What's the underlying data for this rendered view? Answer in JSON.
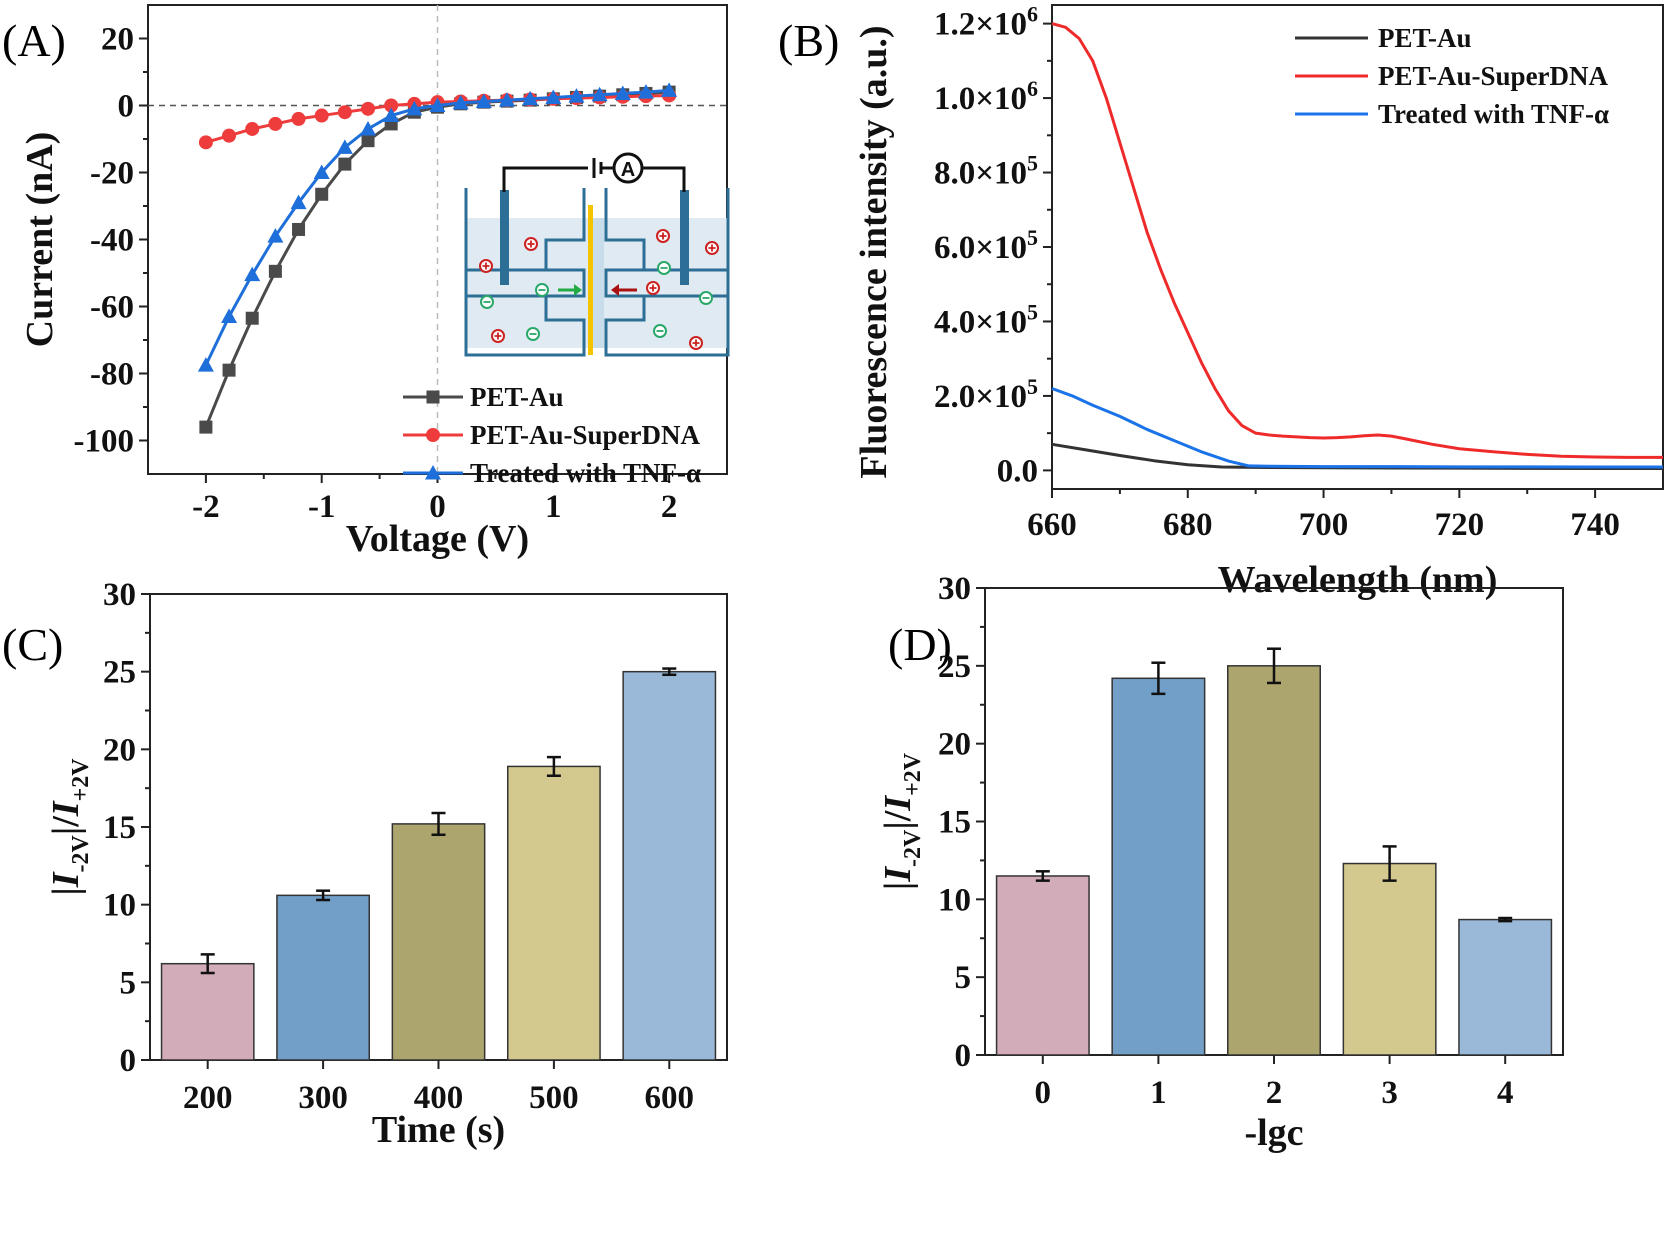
{
  "panel_labels": [
    "(A)",
    "(B)",
    "(C)",
    "(D)"
  ],
  "chart_data": [
    {
      "panel": "(A)",
      "type": "line",
      "xlabel": "Voltage (V)",
      "ylabel": "Current (nA)",
      "xlim": [
        -2.5,
        2.5
      ],
      "ylim": [
        -110,
        30
      ],
      "xticks": [
        -2,
        -1,
        0,
        1,
        2
      ],
      "yticks": [
        20,
        0,
        -20,
        -40,
        -60,
        -80,
        -100
      ],
      "grid": false,
      "legend": "bottom-right",
      "x": [
        -2.0,
        -1.8,
        -1.6,
        -1.4,
        -1.2,
        -1.0,
        -0.8,
        -0.6,
        -0.4,
        -0.2,
        0.0,
        0.2,
        0.4,
        0.6,
        0.8,
        1.0,
        1.2,
        1.4,
        1.6,
        1.8,
        2.0
      ],
      "series": [
        {
          "name": "PET-Au",
          "color": "#4a4a4a",
          "marker": "square",
          "values": [
            -96,
            -79,
            -63.5,
            -49.5,
            -37,
            -26.5,
            -17.5,
            -10.5,
            -5.5,
            -2,
            -0.5,
            0.5,
            1,
            1.3,
            1.6,
            2,
            2.4,
            2.8,
            3.2,
            3.6,
            4
          ]
        },
        {
          "name": "PET-Au-SuperDNA",
          "color": "#ee3b3b",
          "marker": "circle",
          "values": [
            -11,
            -9,
            -7,
            -5.5,
            -4,
            -3,
            -2,
            -1,
            0,
            0.5,
            1,
            1.2,
            1.4,
            1.6,
            1.8,
            2,
            2.2,
            2.4,
            2.6,
            2.8,
            3
          ]
        },
        {
          "name": "Treated with TNF-α",
          "color": "#1e6fd9",
          "marker": "triangle",
          "values": [
            -77.5,
            -63,
            -50.5,
            -39,
            -29,
            -20,
            -12.5,
            -7,
            -3,
            -1,
            0,
            0.8,
            1.2,
            1.6,
            2,
            2.4,
            2.8,
            3.2,
            3.6,
            4,
            4.5
          ]
        }
      ],
      "inset": {
        "description_icons": [
          "ammeter-icon",
          "membrane-channel-icon",
          "cation-icon",
          "anion-icon",
          "electrode-icon"
        ],
        "ammeter_label": "A",
        "colors": {
          "electrode": "#2d6e96",
          "membrane": "#f5c400",
          "cation": "#cc2222",
          "anion": "#2aa86a",
          "arrow_right": "#22aa44",
          "arrow_left": "#aa1111"
        }
      }
    },
    {
      "panel": "(B)",
      "type": "line",
      "xlabel": "Wavelength (nm)",
      "ylabel": "Fluorescence intensity (a.u.)",
      "xlim": [
        660,
        750
      ],
      "ylim": [
        -50000,
        1250000
      ],
      "xticks": [
        660,
        680,
        700,
        720,
        740
      ],
      "yticks": [
        {
          "value": 0,
          "mant": "0.0",
          "exp": ""
        },
        {
          "value": 200000,
          "mant": "2.0×10",
          "exp": "5"
        },
        {
          "value": 400000,
          "mant": "4.0×10",
          "exp": "5"
        },
        {
          "value": 600000,
          "mant": "6.0×10",
          "exp": "5"
        },
        {
          "value": 800000,
          "mant": "8.0×10",
          "exp": "5"
        },
        {
          "value": 1000000,
          "mant": "1.0×10",
          "exp": "6"
        },
        {
          "value": 1200000,
          "mant": "1.2×10",
          "exp": "6"
        }
      ],
      "grid": false,
      "legend": "top-right",
      "series": [
        {
          "name": "PET-Au",
          "color": "#333333",
          "x": [
            660,
            665,
            670,
            675,
            680,
            685,
            690,
            700,
            710,
            720,
            730,
            740,
            750
          ],
          "values": [
            70000,
            55000,
            40000,
            26000,
            15000,
            9000,
            8000,
            7000,
            6500,
            6000,
            5500,
            5000,
            5000
          ]
        },
        {
          "name": "PET-Au-SuperDNA",
          "color": "#ee2a2a",
          "x": [
            660,
            662,
            664,
            666,
            668,
            670,
            672,
            674,
            676,
            678,
            680,
            682,
            684,
            686,
            688,
            690,
            692,
            694,
            696,
            698,
            700,
            702,
            704,
            706,
            708,
            710,
            712,
            716,
            720,
            725,
            730,
            735,
            740,
            745,
            750
          ],
          "values": [
            1200000,
            1190000,
            1160000,
            1100000,
            1000000,
            880000,
            760000,
            640000,
            540000,
            450000,
            370000,
            290000,
            220000,
            160000,
            120000,
            100000,
            95000,
            92000,
            90000,
            88000,
            87000,
            88000,
            90000,
            93000,
            95000,
            92000,
            85000,
            70000,
            58000,
            50000,
            43000,
            38000,
            36000,
            35000,
            35000
          ]
        },
        {
          "name": "Treated with TNF-α",
          "color": "#1a73e8",
          "x": [
            660,
            663,
            666,
            670,
            674,
            678,
            682,
            686,
            689,
            692,
            700,
            710,
            720,
            730,
            740,
            750
          ],
          "values": [
            220000,
            200000,
            175000,
            145000,
            110000,
            80000,
            50000,
            25000,
            12000,
            11000,
            10000,
            10000,
            9500,
            9500,
            9000,
            9000
          ]
        }
      ]
    },
    {
      "panel": "(C)",
      "type": "bar",
      "xlabel": "Time (s)",
      "ylabel": "|I-2V|/|I+2V",
      "ylim": [
        0,
        30
      ],
      "yticks": [
        0,
        5,
        10,
        15,
        20,
        25,
        30
      ],
      "categories": [
        "200",
        "300",
        "400",
        "500",
        "600"
      ],
      "values": [
        6.2,
        10.6,
        15.2,
        18.9,
        25.0
      ],
      "errors": [
        0.6,
        0.3,
        0.7,
        0.6,
        0.2
      ],
      "colors": [
        "#d3acba",
        "#729fc8",
        "#aca56e",
        "#d3c98f",
        "#9ab9d8"
      ]
    },
    {
      "panel": "(D)",
      "type": "bar",
      "xlabel": "-lgc",
      "ylabel": "|I-2V|/|I+2V",
      "ylim": [
        0,
        30
      ],
      "yticks": [
        0,
        5,
        10,
        15,
        20,
        25,
        30
      ],
      "categories": [
        "0",
        "1",
        "2",
        "3",
        "4"
      ],
      "values": [
        11.5,
        24.2,
        25.0,
        12.3,
        8.7
      ],
      "errors": [
        0.3,
        1.0,
        1.1,
        1.1,
        0.1
      ],
      "colors": [
        "#d3acba",
        "#729fc8",
        "#aca56e",
        "#d3c98f",
        "#9ab9d8"
      ]
    }
  ]
}
